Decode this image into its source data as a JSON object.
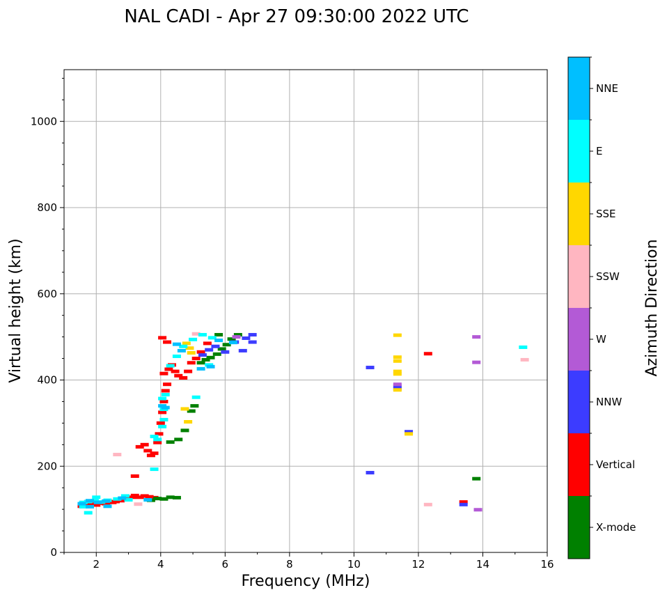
{
  "chart_data": {
    "type": "scatter",
    "title": "NAL CADI - Apr 27 09:30:00 2022 UTC",
    "xlabel": "Frequency (MHz)",
    "ylabel": "Virtual height (km)",
    "xlim": [
      1,
      16
    ],
    "ylim": [
      0,
      1120
    ],
    "xticks": [
      2,
      4,
      6,
      8,
      10,
      12,
      14,
      16
    ],
    "yticks": [
      0,
      200,
      400,
      600,
      800,
      1000
    ],
    "grid": true,
    "colorbar": {
      "title": "Azimuth Direction",
      "categories": [
        {
          "name": "X-mode",
          "color": "#008000"
        },
        {
          "name": "Vertical",
          "color": "#ff0000"
        },
        {
          "name": "NNW",
          "color": "#3c3cff"
        },
        {
          "name": "W",
          "color": "#b35ad6"
        },
        {
          "name": "SSW",
          "color": "#ffb6c1"
        },
        {
          "name": "SSE",
          "color": "#ffd700"
        },
        {
          "name": "E",
          "color": "#00ffff"
        },
        {
          "name": "NNE",
          "color": "#00bfff"
        }
      ]
    },
    "series": [
      {
        "name": "Vertical",
        "color": "#ff0000",
        "points": [
          [
            1.55,
            107
          ],
          [
            1.7,
            110
          ],
          [
            1.85,
            112
          ],
          [
            2.0,
            110
          ],
          [
            2.15,
            114
          ],
          [
            2.3,
            113
          ],
          [
            2.5,
            116
          ],
          [
            2.6,
            118
          ],
          [
            2.75,
            120
          ],
          [
            2.95,
            124
          ],
          [
            3.1,
            128
          ],
          [
            3.2,
            132
          ],
          [
            3.35,
            128
          ],
          [
            3.5,
            131
          ],
          [
            3.65,
            129
          ],
          [
            3.8,
            127
          ],
          [
            3.2,
            177
          ],
          [
            3.35,
            245
          ],
          [
            3.5,
            250
          ],
          [
            3.6,
            236
          ],
          [
            3.7,
            225
          ],
          [
            3.8,
            230
          ],
          [
            3.9,
            255
          ],
          [
            3.95,
            275
          ],
          [
            4.0,
            300
          ],
          [
            4.05,
            325
          ],
          [
            4.1,
            350
          ],
          [
            4.15,
            375
          ],
          [
            4.2,
            390
          ],
          [
            4.1,
            415
          ],
          [
            4.25,
            425
          ],
          [
            4.35,
            435
          ],
          [
            4.45,
            420
          ],
          [
            4.55,
            410
          ],
          [
            4.7,
            405
          ],
          [
            4.85,
            420
          ],
          [
            4.95,
            440
          ],
          [
            5.1,
            450
          ],
          [
            5.25,
            465
          ],
          [
            5.45,
            485
          ],
          [
            4.05,
            498
          ],
          [
            4.2,
            488
          ],
          [
            12.3,
            461
          ],
          [
            13.4,
            117
          ]
        ]
      },
      {
        "name": "X-mode",
        "color": "#008000",
        "points": [
          [
            3.7,
            121
          ],
          [
            3.9,
            125
          ],
          [
            4.1,
            124
          ],
          [
            4.3,
            128
          ],
          [
            4.5,
            127
          ],
          [
            4.3,
            256
          ],
          [
            4.55,
            262
          ],
          [
            4.75,
            283
          ],
          [
            4.95,
            328
          ],
          [
            5.05,
            340
          ],
          [
            5.25,
            440
          ],
          [
            5.4,
            447
          ],
          [
            5.55,
            452
          ],
          [
            5.75,
            460
          ],
          [
            5.9,
            472
          ],
          [
            6.05,
            482
          ],
          [
            6.2,
            495
          ],
          [
            6.4,
            505
          ],
          [
            5.8,
            505
          ],
          [
            13.8,
            171
          ]
        ]
      },
      {
        "name": "NNW",
        "color": "#3c3cff",
        "points": [
          [
            5.3,
            458
          ],
          [
            5.5,
            470
          ],
          [
            5.7,
            478
          ],
          [
            6.0,
            465
          ],
          [
            6.3,
            488
          ],
          [
            6.55,
            468
          ],
          [
            6.85,
            488
          ],
          [
            6.65,
            497
          ],
          [
            6.85,
            505
          ],
          [
            10.5,
            429
          ],
          [
            10.5,
            185
          ],
          [
            11.35,
            386
          ],
          [
            11.35,
            380
          ],
          [
            11.7,
            280
          ],
          [
            13.4,
            111
          ]
        ]
      },
      {
        "name": "W",
        "color": "#b35ad6",
        "points": [
          [
            13.8,
            500
          ],
          [
            13.8,
            441
          ],
          [
            11.35,
            390
          ],
          [
            13.85,
            99
          ],
          [
            6.35,
            500
          ]
        ]
      },
      {
        "name": "SSW",
        "color": "#ffb6c1",
        "points": [
          [
            2.65,
            227
          ],
          [
            12.3,
            111
          ],
          [
            15.3,
            447
          ],
          [
            5.1,
            507
          ],
          [
            3.3,
            112
          ]
        ]
      },
      {
        "name": "SSE",
        "color": "#ffd700",
        "points": [
          [
            11.35,
            504
          ],
          [
            11.35,
            453
          ],
          [
            11.35,
            444
          ],
          [
            11.35,
            420
          ],
          [
            11.35,
            414
          ],
          [
            11.35,
            377
          ],
          [
            11.7,
            275
          ],
          [
            4.75,
            333
          ],
          [
            4.85,
            303
          ],
          [
            4.9,
            474
          ],
          [
            4.8,
            485
          ],
          [
            4.95,
            463
          ]
        ]
      },
      {
        "name": "E",
        "color": "#00ffff",
        "points": [
          [
            15.25,
            476
          ],
          [
            1.6,
            116
          ],
          [
            1.75,
            118
          ],
          [
            1.95,
            120
          ],
          [
            2.15,
            117
          ],
          [
            2.35,
            121
          ],
          [
            2.65,
            124
          ],
          [
            2.9,
            131
          ],
          [
            3.0,
            122
          ],
          [
            3.8,
            269
          ],
          [
            3.9,
            262
          ],
          [
            4.05,
            292
          ],
          [
            4.1,
            308
          ],
          [
            4.1,
            332
          ],
          [
            4.05,
            357
          ],
          [
            4.15,
            366
          ],
          [
            5.1,
            360
          ],
          [
            4.3,
            433
          ],
          [
            4.5,
            455
          ],
          [
            4.7,
            478
          ],
          [
            5.0,
            494
          ],
          [
            5.3,
            505
          ],
          [
            5.5,
            435
          ],
          [
            5.6,
            498
          ],
          [
            3.8,
            193
          ],
          [
            2.0,
            128
          ],
          [
            1.6,
            106
          ],
          [
            1.75,
            92
          ]
        ]
      },
      {
        "name": "NNE",
        "color": "#00bfff",
        "points": [
          [
            1.55,
            113
          ],
          [
            1.8,
            120
          ],
          [
            2.05,
            116
          ],
          [
            2.3,
            119
          ],
          [
            2.8,
            126
          ],
          [
            3.6,
            122
          ],
          [
            4.05,
            340
          ],
          [
            4.15,
            336
          ],
          [
            5.25,
            426
          ],
          [
            5.55,
            431
          ],
          [
            5.8,
            492
          ],
          [
            6.25,
            487
          ],
          [
            4.65,
            468
          ],
          [
            4.5,
            483
          ],
          [
            1.8,
            106
          ],
          [
            2.35,
            107
          ]
        ]
      }
    ]
  }
}
